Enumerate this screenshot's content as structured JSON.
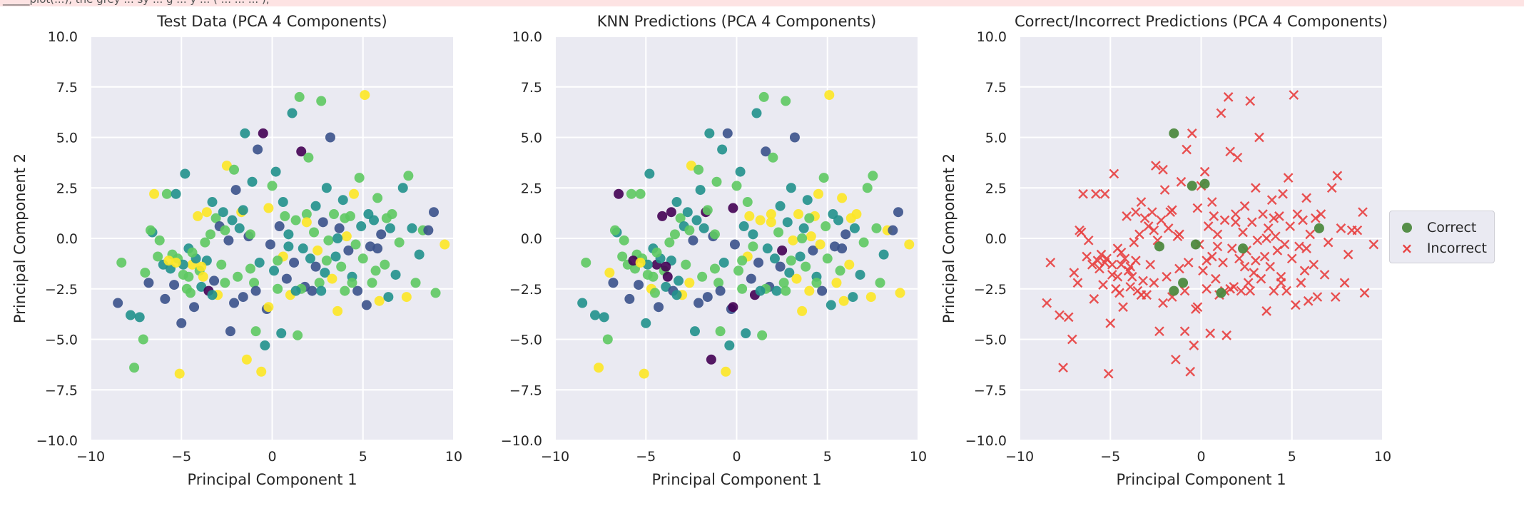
{
  "header": {
    "truncated_code": "_____plot(...), the grey ... sy ... g ... y ... ( ... ... ... ),"
  },
  "colors": {
    "plot_bg": "#eaeaf2",
    "grid": "#ffffff",
    "correct": "#4e8a3f",
    "incorrect": "#e84040",
    "viridis": [
      "#440154",
      "#3b528b",
      "#21918c",
      "#5ec962",
      "#fde725"
    ]
  },
  "legend": {
    "correct_label": "Correct",
    "incorrect_label": "Incorrect",
    "placement": "center-right outside"
  },
  "chart_data": [
    {
      "type": "scatter",
      "title": "Test Data (PCA 4 Components)",
      "xlabel": "Principal Component 1",
      "ylabel": "Principal Component 2",
      "xlim": [
        -10,
        10
      ],
      "ylim": [
        -10,
        10
      ],
      "xticks": [
        "−10",
        "−5",
        "0",
        "5",
        "10"
      ],
      "yticks": [
        "−10.0",
        "−7.5",
        "−5.0",
        "−2.5",
        "0.0",
        "2.5",
        "5.0",
        "7.5",
        "10.0"
      ],
      "grid": true,
      "color_encoding": "class 0-4 viridis (true labels)"
    },
    {
      "type": "scatter",
      "title": "KNN Predictions (PCA 4 Components)",
      "xlabel": "Principal Component 1",
      "ylabel": "",
      "xlim": [
        -10,
        10
      ],
      "ylim": [
        -10,
        10
      ],
      "xticks": [
        "−10",
        "−5",
        "0",
        "5",
        "10"
      ],
      "yticks": [
        "−10.0",
        "−7.5",
        "−5.0",
        "−2.5",
        "0.0",
        "2.5",
        "5.0",
        "7.5",
        "10.0"
      ],
      "grid": true,
      "color_encoding": "class 0-4 viridis (predicted labels)"
    },
    {
      "type": "scatter",
      "title": "Correct/Incorrect Predictions (PCA 4 Components)",
      "xlabel": "Principal Component 1",
      "ylabel": "Principal Component 2",
      "xlim": [
        -10,
        10
      ],
      "ylim": [
        -10,
        10
      ],
      "xticks": [
        "−10",
        "−5",
        "0",
        "5",
        "10"
      ],
      "yticks": [
        "−10.0",
        "−7.5",
        "−5.0",
        "−2.5",
        "0.0",
        "2.5",
        "5.0",
        "7.5",
        "10.0"
      ],
      "grid": true,
      "series": [
        {
          "name": "Correct",
          "marker": "circle",
          "points": [
            [
              -1.5,
              5.2
            ],
            [
              -0.5,
              2.6
            ],
            [
              0.2,
              2.7
            ],
            [
              -2.3,
              -0.4
            ],
            [
              -1.5,
              -2.6
            ],
            [
              -1.0,
              -2.2
            ],
            [
              -0.3,
              -0.3
            ],
            [
              1.1,
              -2.7
            ],
            [
              2.3,
              -0.5
            ],
            [
              6.5,
              0.5
            ]
          ]
        },
        {
          "name": "Incorrect",
          "marker": "x"
        }
      ]
    }
  ],
  "shared_points": [
    [
      -8.5,
      -3.2,
      1
    ],
    [
      -8.3,
      -1.2,
      3
    ],
    [
      -7.8,
      -3.8,
      2
    ],
    [
      -7.6,
      -6.4,
      3
    ],
    [
      -7.3,
      -3.9,
      2
    ],
    [
      -7.1,
      -5.0,
      3
    ],
    [
      -7.0,
      -1.7,
      3
    ],
    [
      -6.8,
      -2.2,
      1
    ],
    [
      -6.6,
      0.3,
      2
    ],
    [
      -6.5,
      2.2,
      4
    ],
    [
      -6.3,
      -0.9,
      3
    ],
    [
      -6.2,
      -0.1,
      3
    ],
    [
      -6.0,
      -1.3,
      2
    ],
    [
      -5.9,
      -3.0,
      1
    ],
    [
      -5.8,
      2.2,
      3
    ],
    [
      -5.6,
      -1.5,
      2
    ],
    [
      -5.5,
      -0.8,
      3
    ],
    [
      -5.4,
      -2.3,
      1
    ],
    [
      -5.3,
      2.2,
      2
    ],
    [
      -5.2,
      -1.0,
      3
    ],
    [
      -5.1,
      -6.7,
      4
    ],
    [
      -5.0,
      -4.2,
      1
    ],
    [
      -4.9,
      -1.8,
      3
    ],
    [
      -4.8,
      3.2,
      2
    ],
    [
      -4.7,
      -2.5,
      3
    ],
    [
      -4.6,
      -0.5,
      2
    ],
    [
      -4.5,
      -2.7,
      3
    ],
    [
      -4.4,
      -1.3,
      4
    ],
    [
      -4.3,
      -3.4,
      1
    ],
    [
      -4.2,
      -1.0,
      2
    ],
    [
      -4.1,
      1.1,
      4
    ],
    [
      -4.0,
      -1.6,
      3
    ],
    [
      -3.9,
      -2.4,
      2
    ],
    [
      -3.8,
      -1.9,
      4
    ],
    [
      -3.7,
      -0.2,
      3
    ],
    [
      -3.6,
      -1.1,
      2
    ],
    [
      -3.5,
      -2.6,
      0
    ],
    [
      -3.4,
      0.2,
      3
    ],
    [
      -3.3,
      1.8,
      2
    ],
    [
      -3.2,
      -2.1,
      1
    ],
    [
      -3.1,
      1.0,
      3
    ],
    [
      -3.0,
      -2.8,
      4
    ],
    [
      -2.9,
      0.6,
      1
    ],
    [
      -2.8,
      -1.3,
      3
    ],
    [
      -2.7,
      1.3,
      2
    ],
    [
      -2.6,
      -2.2,
      3
    ],
    [
      -2.5,
      3.6,
      4
    ],
    [
      -2.4,
      -0.1,
      1
    ],
    [
      -2.3,
      -4.6,
      1
    ],
    [
      -2.2,
      0.9,
      2
    ],
    [
      -2.1,
      3.4,
      3
    ],
    [
      -2.0,
      2.4,
      1
    ],
    [
      -1.9,
      -1.9,
      3
    ],
    [
      -1.8,
      0.5,
      2
    ],
    [
      -1.7,
      1.3,
      4
    ],
    [
      -1.6,
      -2.9,
      1
    ],
    [
      -1.5,
      5.2,
      2
    ],
    [
      -1.4,
      -6.0,
      4
    ],
    [
      -1.3,
      0.1,
      1
    ],
    [
      -1.2,
      -1.5,
      3
    ],
    [
      -1.1,
      2.8,
      2
    ],
    [
      -1.0,
      -2.2,
      3
    ],
    [
      -0.9,
      -4.6,
      3
    ],
    [
      -0.8,
      4.4,
      1
    ],
    [
      -0.7,
      -1.2,
      2
    ],
    [
      -0.6,
      -6.6,
      4
    ],
    [
      -0.5,
      5.2,
      0
    ],
    [
      -0.4,
      -5.3,
      2
    ],
    [
      -0.3,
      -3.5,
      1
    ],
    [
      -0.2,
      1.5,
      4
    ],
    [
      -0.1,
      -0.3,
      1
    ],
    [
      0.0,
      2.6,
      3
    ],
    [
      0.1,
      -1.6,
      2
    ],
    [
      0.2,
      3.3,
      2
    ],
    [
      0.3,
      -2.5,
      3
    ],
    [
      0.4,
      0.6,
      1
    ],
    [
      0.5,
      -4.7,
      2
    ],
    [
      0.6,
      -0.9,
      4
    ],
    [
      0.7,
      1.1,
      3
    ],
    [
      0.8,
      -2.0,
      1
    ],
    [
      0.9,
      0.2,
      2
    ],
    [
      1.0,
      -2.8,
      4
    ],
    [
      1.1,
      6.2,
      2
    ],
    [
      1.2,
      -1.2,
      1
    ],
    [
      1.3,
      0.9,
      3
    ],
    [
      1.4,
      -4.8,
      3
    ],
    [
      1.5,
      7.0,
      3
    ],
    [
      1.6,
      4.3,
      0
    ],
    [
      1.7,
      -0.5,
      2
    ],
    [
      1.8,
      -2.4,
      1
    ],
    [
      1.9,
      1.2,
      3
    ],
    [
      2.0,
      4.0,
      3
    ],
    [
      2.1,
      -1.0,
      2
    ],
    [
      2.2,
      -2.6,
      1
    ],
    [
      2.3,
      0.3,
      3
    ],
    [
      2.4,
      1.6,
      2
    ],
    [
      2.5,
      -0.6,
      4
    ],
    [
      2.6,
      -2.2,
      3
    ],
    [
      2.7,
      6.8,
      3
    ],
    [
      2.8,
      0.8,
      1
    ],
    [
      2.9,
      -1.7,
      2
    ],
    [
      3.0,
      2.5,
      2
    ],
    [
      3.1,
      -0.1,
      3
    ],
    [
      3.2,
      5.0,
      1
    ],
    [
      3.3,
      -2.0,
      4
    ],
    [
      3.4,
      1.2,
      3
    ],
    [
      3.5,
      -0.9,
      2
    ],
    [
      3.6,
      -3.6,
      4
    ],
    [
      3.7,
      0.5,
      1
    ],
    [
      3.8,
      -1.4,
      3
    ],
    [
      3.9,
      1.9,
      2
    ],
    [
      4.0,
      -2.6,
      3
    ],
    [
      4.1,
      0.1,
      4
    ],
    [
      4.2,
      -0.6,
      1
    ],
    [
      4.3,
      1.1,
      3
    ],
    [
      4.4,
      -1.9,
      2
    ],
    [
      4.5,
      2.2,
      4
    ],
    [
      4.6,
      -0.3,
      3
    ],
    [
      4.7,
      -2.6,
      1
    ],
    [
      4.8,
      3.0,
      3
    ],
    [
      4.9,
      0.6,
      2
    ],
    [
      5.0,
      -1.0,
      3
    ],
    [
      5.1,
      7.1,
      4
    ],
    [
      5.2,
      -3.3,
      1
    ],
    [
      5.3,
      1.2,
      2
    ],
    [
      5.4,
      -0.4,
      1
    ],
    [
      5.5,
      -2.2,
      3
    ],
    [
      5.6,
      0.9,
      2
    ],
    [
      5.7,
      -1.6,
      3
    ],
    [
      5.8,
      2.0,
      3
    ],
    [
      5.9,
      -3.1,
      4
    ],
    [
      6.0,
      0.2,
      1
    ],
    [
      6.2,
      -1.3,
      3
    ],
    [
      6.4,
      -2.9,
      2
    ],
    [
      6.5,
      0.5,
      2
    ],
    [
      6.6,
      1.2,
      3
    ],
    [
      6.8,
      -1.8,
      2
    ],
    [
      7.0,
      -0.2,
      3
    ],
    [
      7.2,
      2.5,
      2
    ],
    [
      7.4,
      -2.9,
      4
    ],
    [
      7.5,
      3.1,
      3
    ],
    [
      7.7,
      0.5,
      2
    ],
    [
      7.9,
      -2.2,
      3
    ],
    [
      8.1,
      -0.8,
      2
    ],
    [
      8.3,
      0.4,
      3
    ],
    [
      8.6,
      0.4,
      1
    ],
    [
      8.9,
      1.3,
      1
    ],
    [
      9.0,
      -2.7,
      3
    ],
    [
      9.5,
      -0.3,
      4
    ],
    [
      -6.7,
      0.4,
      3
    ],
    [
      -5.7,
      -1.1,
      4
    ],
    [
      -4.9,
      -1.3,
      2
    ],
    [
      -4.4,
      -0.7,
      3
    ],
    [
      -3.9,
      -1.4,
      4
    ],
    [
      -3.3,
      -2.8,
      2
    ],
    [
      -2.6,
      0.4,
      3
    ],
    [
      -1.6,
      1.4,
      2
    ],
    [
      -0.9,
      -2.6,
      1
    ],
    [
      0.3,
      -1.1,
      3
    ],
    [
      0.9,
      -0.4,
      2
    ],
    [
      1.6,
      -2.5,
      3
    ],
    [
      2.4,
      -1.4,
      1
    ],
    [
      3.6,
      0.0,
      2
    ],
    [
      4.4,
      -2.2,
      3
    ],
    [
      5.8,
      -0.5,
      1
    ],
    [
      6.3,
      1.0,
      3
    ],
    [
      -2.1,
      -3.2,
      1
    ],
    [
      -1.2,
      0.2,
      3
    ],
    [
      0.6,
      1.8,
      2
    ],
    [
      1.9,
      0.8,
      4
    ],
    [
      3.0,
      -1.1,
      3
    ],
    [
      -3.6,
      1.3,
      4
    ],
    [
      -4.6,
      -1.9,
      3
    ],
    [
      -5.3,
      -1.2,
      4
    ],
    [
      2.7,
      -2.6,
      2
    ],
    [
      4.0,
      1.0,
      3
    ],
    [
      1.3,
      -2.6,
      2
    ],
    [
      -0.2,
      -3.4,
      4
    ]
  ]
}
